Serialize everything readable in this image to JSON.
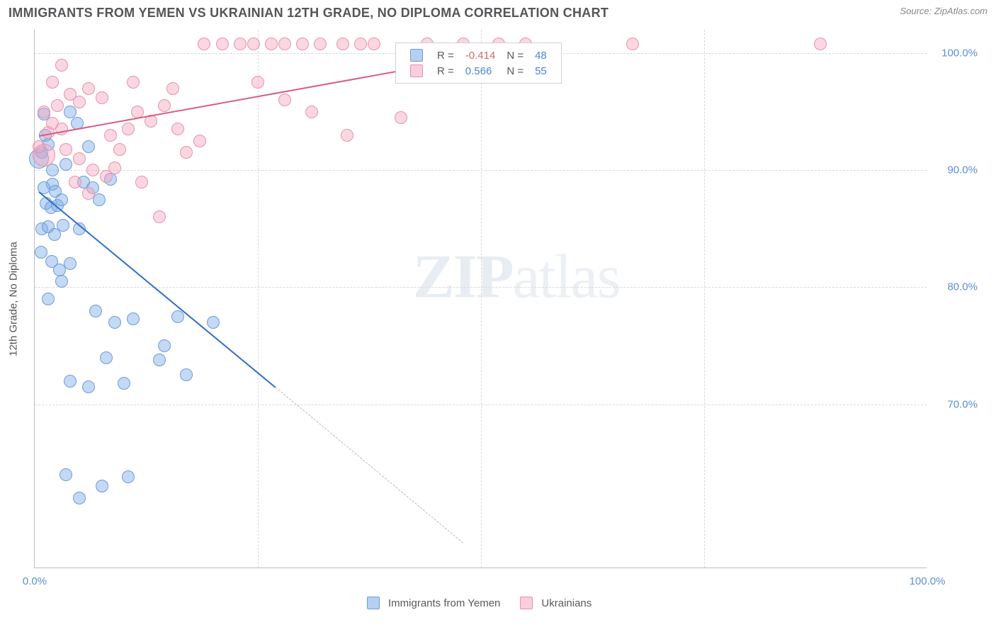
{
  "header": {
    "title": "IMMIGRANTS FROM YEMEN VS UKRAINIAN 12TH GRADE, NO DIPLOMA CORRELATION CHART",
    "source_label": "Source: ZipAtlas.com"
  },
  "chart": {
    "type": "scatter",
    "xlim": [
      0,
      100
    ],
    "ylim": [
      56,
      102
    ],
    "x_ticks": [
      0,
      100
    ],
    "x_tick_labels": [
      "0.0%",
      "100.0%"
    ],
    "y_ticks": [
      70,
      80,
      90,
      100
    ],
    "y_tick_labels": [
      "70.0%",
      "80.0%",
      "90.0%",
      "100.0%"
    ],
    "x_minor_ticks": [
      25,
      50,
      75
    ],
    "ylabel": "12th Grade, No Diploma",
    "grid_color": "#d8d8d8",
    "background_color": "#ffffff",
    "axis_color": "#bdbdbd",
    "tick_label_color": "#5b8fd6",
    "marker_radius": 9,
    "series": [
      {
        "name": "Immigrants from Yemen",
        "color_fill": "rgba(122,170,230,0.45)",
        "color_stroke": "#6d9cdc",
        "R": -0.414,
        "N": 48,
        "trend": {
          "x1": 0.5,
          "y1": 88.2,
          "x2": 27,
          "y2": 71.5,
          "color": "#2f6fc7",
          "width": 2
        },
        "trend_dash": {
          "x1": 27,
          "y1": 71.5,
          "x2": 48,
          "y2": 58.2
        },
        "points": [
          {
            "x": 0.5,
            "y": 91.0,
            "r": 14
          },
          {
            "x": 1.0,
            "y": 94.8
          },
          {
            "x": 1.2,
            "y": 93.0
          },
          {
            "x": 1.5,
            "y": 92.2
          },
          {
            "x": 2.0,
            "y": 88.8
          },
          {
            "x": 2.3,
            "y": 88.2
          },
          {
            "x": 1.0,
            "y": 88.5
          },
          {
            "x": 1.3,
            "y": 87.2
          },
          {
            "x": 1.8,
            "y": 86.8
          },
          {
            "x": 2.5,
            "y": 87.0
          },
          {
            "x": 3.0,
            "y": 87.5
          },
          {
            "x": 0.8,
            "y": 85.0
          },
          {
            "x": 1.5,
            "y": 85.2
          },
          {
            "x": 2.2,
            "y": 84.5
          },
          {
            "x": 3.2,
            "y": 85.3
          },
          {
            "x": 0.7,
            "y": 83.0
          },
          {
            "x": 1.9,
            "y": 82.2
          },
          {
            "x": 2.8,
            "y": 81.5
          },
          {
            "x": 4.0,
            "y": 95.0
          },
          {
            "x": 4.8,
            "y": 94.0
          },
          {
            "x": 5.5,
            "y": 89.0
          },
          {
            "x": 3.5,
            "y": 90.5
          },
          {
            "x": 6.0,
            "y": 92.0
          },
          {
            "x": 6.5,
            "y": 88.5
          },
          {
            "x": 7.2,
            "y": 87.5
          },
          {
            "x": 8.5,
            "y": 89.2
          },
          {
            "x": 5.0,
            "y": 85.0
          },
          {
            "x": 4.0,
            "y": 82.0
          },
          {
            "x": 3.0,
            "y": 80.5
          },
          {
            "x": 1.5,
            "y": 79.0
          },
          {
            "x": 6.8,
            "y": 78.0
          },
          {
            "x": 9.0,
            "y": 77.0
          },
          {
            "x": 11.0,
            "y": 77.3
          },
          {
            "x": 14.5,
            "y": 75.0
          },
          {
            "x": 16.0,
            "y": 77.5
          },
          {
            "x": 20.0,
            "y": 77.0
          },
          {
            "x": 14.0,
            "y": 73.8
          },
          {
            "x": 17.0,
            "y": 72.5
          },
          {
            "x": 4.0,
            "y": 72.0
          },
          {
            "x": 6.0,
            "y": 71.5
          },
          {
            "x": 10.0,
            "y": 71.8
          },
          {
            "x": 8.0,
            "y": 74.0
          },
          {
            "x": 3.5,
            "y": 64.0
          },
          {
            "x": 7.5,
            "y": 63.0
          },
          {
            "x": 10.5,
            "y": 63.8
          },
          {
            "x": 5.0,
            "y": 62.0
          },
          {
            "x": 0.8,
            "y": 91.5
          },
          {
            "x": 2.0,
            "y": 90.0
          }
        ]
      },
      {
        "name": "Ukrainians",
        "color_fill": "rgba(244,166,188,0.45)",
        "color_stroke": "#e891ab",
        "R": 0.566,
        "N": 55,
        "trend": {
          "x1": 0.5,
          "y1": 93.0,
          "x2": 55,
          "y2": 100.5,
          "color": "#d85c84",
          "width": 2
        },
        "points": [
          {
            "x": 1.0,
            "y": 91.3,
            "r": 16
          },
          {
            "x": 1.5,
            "y": 93.2
          },
          {
            "x": 2.0,
            "y": 94.0
          },
          {
            "x": 3.0,
            "y": 93.5
          },
          {
            "x": 2.5,
            "y": 95.5
          },
          {
            "x": 4.0,
            "y": 96.5
          },
          {
            "x": 5.0,
            "y": 95.8
          },
          {
            "x": 6.0,
            "y": 97.0
          },
          {
            "x": 7.5,
            "y": 96.2
          },
          {
            "x": 3.5,
            "y": 91.8
          },
          {
            "x": 5.0,
            "y": 91.0
          },
          {
            "x": 6.5,
            "y": 90.0
          },
          {
            "x": 8.0,
            "y": 89.5
          },
          {
            "x": 9.5,
            "y": 91.8
          },
          {
            "x": 10.5,
            "y": 93.5
          },
          {
            "x": 11.5,
            "y": 95.0
          },
          {
            "x": 13.0,
            "y": 94.2
          },
          {
            "x": 14.5,
            "y": 95.5
          },
          {
            "x": 15.5,
            "y": 97.0
          },
          {
            "x": 17.0,
            "y": 91.5
          },
          {
            "x": 18.5,
            "y": 92.5
          },
          {
            "x": 12.0,
            "y": 89.0
          },
          {
            "x": 14.0,
            "y": 86.0
          },
          {
            "x": 8.5,
            "y": 93.0
          },
          {
            "x": 4.5,
            "y": 89.0
          },
          {
            "x": 6.0,
            "y": 88.0
          },
          {
            "x": 1.0,
            "y": 95.0
          },
          {
            "x": 2.0,
            "y": 97.5
          },
          {
            "x": 3.0,
            "y": 99.0
          },
          {
            "x": 0.5,
            "y": 92.0
          },
          {
            "x": 19.0,
            "y": 100.8
          },
          {
            "x": 21.0,
            "y": 100.8
          },
          {
            "x": 23.0,
            "y": 100.8
          },
          {
            "x": 24.5,
            "y": 100.8
          },
          {
            "x": 26.5,
            "y": 100.8
          },
          {
            "x": 28.0,
            "y": 100.8
          },
          {
            "x": 30.0,
            "y": 100.8
          },
          {
            "x": 32.0,
            "y": 100.8
          },
          {
            "x": 34.5,
            "y": 100.8
          },
          {
            "x": 36.5,
            "y": 100.8
          },
          {
            "x": 38.0,
            "y": 100.8
          },
          {
            "x": 25.0,
            "y": 97.5
          },
          {
            "x": 28.0,
            "y": 96.0
          },
          {
            "x": 31.0,
            "y": 95.0
          },
          {
            "x": 35.0,
            "y": 93.0
          },
          {
            "x": 41.0,
            "y": 94.5
          },
          {
            "x": 44.0,
            "y": 100.8
          },
          {
            "x": 48.0,
            "y": 100.8
          },
          {
            "x": 52.0,
            "y": 100.8
          },
          {
            "x": 55.0,
            "y": 100.8
          },
          {
            "x": 67.0,
            "y": 100.8
          },
          {
            "x": 88.0,
            "y": 100.8
          },
          {
            "x": 9.0,
            "y": 90.2
          },
          {
            "x": 11.0,
            "y": 97.5
          },
          {
            "x": 16.0,
            "y": 93.5
          }
        ]
      }
    ],
    "top_legend": {
      "rows": [
        {
          "swatch": "blue",
          "R_label": "R =",
          "R_value": "-0.414",
          "R_neg": true,
          "N_label": "N =",
          "N_value": "48"
        },
        {
          "swatch": "pink",
          "R_label": "R =",
          "R_value": "0.566",
          "R_neg": false,
          "N_label": "N =",
          "N_value": "55"
        }
      ]
    },
    "bottom_legend": [
      {
        "swatch": "blue",
        "label": "Immigrants from Yemen"
      },
      {
        "swatch": "pink",
        "label": "Ukrainians"
      }
    ],
    "watermark": {
      "bold": "ZIP",
      "rest": "atlas"
    }
  }
}
